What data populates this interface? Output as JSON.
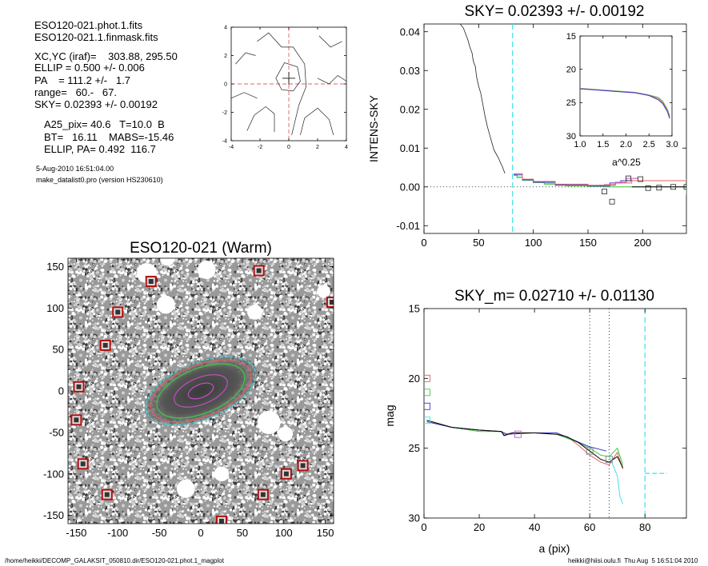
{
  "info": {
    "file1": "ESO120-021.phot.1.fits",
    "file2": "ESO120-021.1.finmask.fits",
    "xcyc": "XC,YC (iraf)=    303.88, 295.50",
    "ellip": "ELLIP = 0.500 +/- 0.006",
    "pa": "PA    = 111.2 +/-   1.7",
    "range": "range=   60.-   67.",
    "sky": "SKY= 0.02393 +/- 0.00192",
    "a25": "A25_pix= 40.6   T=10.0  B",
    "bt": "BT=   16.11    MABS=-15.46",
    "ellip_pa": "ELLIP, PA= 0.492  116.7",
    "date": "5-Aug-2010 16:51:04.00",
    "prog": "make_datalist0.pro (version HS230610)"
  },
  "footer": {
    "left": "/home/heikki/DECOMP_GALAKSIT_050810.dir/ESO120-021.phot.1_magplot",
    "right": "heikki@hiisi.oulu.fi  Thu Aug  5 16:51:04 2010"
  },
  "colors": {
    "red": "#e06060",
    "green": "#3ccc3c",
    "blue": "#3a3ad0",
    "cyan": "#40e0e8",
    "magenta": "#c050c0",
    "grey": "#808080",
    "mask_red": "#b01010"
  },
  "chart_data": [
    {
      "id": "contour",
      "type": "contour",
      "title": "",
      "xlim": [
        -4,
        4
      ],
      "ylim": [
        -4,
        4
      ],
      "xticks": [
        -4,
        -2,
        0,
        2,
        4
      ],
      "yticks": [
        -4,
        -2,
        0,
        2,
        4
      ],
      "tick_labels_x": [
        "-4",
        "-2",
        "0",
        "2",
        "4"
      ],
      "tick_labels_y": [
        "-4",
        "-2",
        "0",
        "2",
        "4"
      ],
      "center": [
        0.0,
        0.4
      ],
      "contours": [
        [
          [
            -0.9,
            0.4
          ],
          [
            -0.3,
            1.5
          ],
          [
            0.6,
            1.2
          ],
          [
            0.8,
            0.2
          ],
          [
            0.3,
            -0.5
          ],
          [
            -0.5,
            -0.4
          ],
          [
            -0.9,
            0.4
          ]
        ],
        [
          [
            -2.2,
            3.0
          ],
          [
            -1.4,
            3.6
          ],
          [
            -0.5,
            2.6
          ],
          [
            0.3,
            2.6
          ],
          [
            1.1,
            1.4
          ],
          [
            1.2,
            -0.2
          ],
          [
            0.7,
            -1.5
          ],
          [
            0.2,
            -3.6
          ]
        ],
        [
          [
            -2.9,
            -3.3
          ],
          [
            -2.4,
            -2.2
          ],
          [
            -1.6,
            -1.6
          ],
          [
            -1.0,
            -2.1
          ],
          [
            -1.0,
            -3.4
          ]
        ],
        [
          [
            0.8,
            -3.6
          ],
          [
            1.1,
            -2.4
          ],
          [
            2.0,
            -1.7
          ],
          [
            2.8,
            -2.5
          ],
          [
            3.1,
            -3.6
          ]
        ],
        [
          [
            -3.7,
            1.4
          ],
          [
            -3.0,
            2.2
          ],
          [
            -2.3,
            2.0
          ]
        ],
        [
          [
            -4.0,
            -1.0
          ],
          [
            -3.1,
            -0.6
          ],
          [
            -2.2,
            -1.0
          ]
        ],
        [
          [
            2.0,
            0.4
          ],
          [
            2.8,
            0.0
          ],
          [
            3.4,
            0.6
          ],
          [
            4.0,
            0.2
          ]
        ],
        [
          [
            2.1,
            3.4
          ],
          [
            2.9,
            2.6
          ],
          [
            3.7,
            3.0
          ]
        ]
      ]
    },
    {
      "id": "sky",
      "type": "line",
      "title": "SKY= 0.02393 +/- 0.00192",
      "xlabel": "",
      "ylabel": "INTENS-SKY",
      "xlim": [
        0,
        240
      ],
      "ylim": [
        -0.012,
        0.042
      ],
      "xticks": [
        0,
        50,
        100,
        150,
        200
      ],
      "yticks": [
        -0.01,
        0.0,
        0.01,
        0.02,
        0.03,
        0.04
      ],
      "tick_labels_x": [
        "0",
        "50",
        "100",
        "150",
        "200"
      ],
      "tick_labels_y": [
        "-0.01",
        "0.00",
        "0.01",
        "0.02",
        "0.03",
        "0.04"
      ],
      "profile": [
        [
          33,
          0.042
        ],
        [
          36,
          0.041
        ],
        [
          38,
          0.0395
        ],
        [
          40,
          0.038
        ],
        [
          42,
          0.036
        ],
        [
          44,
          0.0345
        ],
        [
          45,
          0.0325
        ],
        [
          47,
          0.031
        ],
        [
          48,
          0.0285
        ],
        [
          50,
          0.026
        ],
        [
          52,
          0.024
        ],
        [
          54,
          0.021
        ],
        [
          56,
          0.018
        ],
        [
          58,
          0.0155
        ],
        [
          60,
          0.0135
        ],
        [
          62,
          0.0115
        ],
        [
          64,
          0.0095
        ],
        [
          66,
          0.0085
        ],
        [
          68,
          0.0075
        ],
        [
          70,
          0.0062
        ],
        [
          72,
          0.005
        ],
        [
          73,
          0.0042
        ],
        [
          74,
          0.0035
        ]
      ],
      "series": [
        {
          "color": "cyan",
          "points": [
            [
              82,
              0.0032
            ],
            [
              85,
              0.0026
            ],
            [
              90,
              0.0019
            ],
            [
              100,
              0.0013
            ],
            [
              110,
              0.0009
            ],
            [
              120,
              0.0006
            ],
            [
              130,
              0.0004
            ],
            [
              150,
              0.0003
            ],
            [
              165,
              0.0002
            ]
          ]
        },
        {
          "color": "green",
          "points": [
            [
              82,
              0.003
            ],
            [
              85,
              0.0024
            ],
            [
              90,
              0.0017
            ],
            [
              100,
              0.0011
            ],
            [
              110,
              0.0007
            ],
            [
              120,
              0.0004
            ],
            [
              130,
              0.0002
            ],
            [
              150,
              0.0001
            ],
            [
              165,
              0.0
            ],
            [
              240,
              -0.002
            ]
          ]
        },
        {
          "color": "blue",
          "points": [
            [
              82,
              0.0031
            ],
            [
              90,
              0.0018
            ],
            [
              100,
              0.0012
            ],
            [
              120,
              0.0005
            ],
            [
              150,
              0.0002
            ],
            [
              170,
              0.001
            ],
            [
              180,
              0.0016
            ],
            [
              190,
              0.0019
            ]
          ]
        },
        {
          "color": "red",
          "points": [
            [
              82,
              0.0034
            ],
            [
              90,
              0.002
            ],
            [
              100,
              0.0014
            ],
            [
              120,
              0.0007
            ],
            [
              150,
              0.0004
            ],
            [
              165,
              0.0006
            ],
            [
              175,
              0.001
            ],
            [
              190,
              0.0016
            ],
            [
              240,
              0.002
            ]
          ]
        },
        {
          "color": "magenta",
          "points": [
            [
              160,
              0.0004
            ],
            [
              175,
              0.0012
            ],
            [
              185,
              0.0022
            ],
            [
              195,
              0.0024
            ]
          ]
        },
        {
          "color": "black",
          "points": [
            [
              190,
              0.0
            ],
            [
              240,
              0.0
            ]
          ]
        }
      ],
      "squares": [
        [
          165,
          -0.0012
        ],
        [
          172,
          -0.0038
        ],
        [
          187,
          0.0022
        ],
        [
          198,
          0.002
        ],
        [
          205,
          -0.0003
        ],
        [
          215,
          -0.0002
        ],
        [
          228,
          0.0
        ],
        [
          240,
          0.0
        ]
      ],
      "vline": 81,
      "inset": {
        "xlim": [
          1.0,
          3.0
        ],
        "ylim": [
          15,
          30
        ],
        "xticks": [
          1.0,
          1.5,
          2.0,
          2.5,
          3.0
        ],
        "yticks": [
          15,
          20,
          25,
          30
        ],
        "tick_labels_x": [
          "1.0",
          "1.5",
          "2.0",
          "2.5",
          "3.0"
        ],
        "tick_labels_y": [
          "15",
          "20",
          "25",
          "30"
        ],
        "xlabel": "a^0.25",
        "curve": [
          [
            1.0,
            22.9
          ],
          [
            1.4,
            23.1
          ],
          [
            1.8,
            23.3
          ],
          [
            2.2,
            23.5
          ],
          [
            2.5,
            23.9
          ],
          [
            2.7,
            24.4
          ],
          [
            2.8,
            25.0
          ],
          [
            2.9,
            26.2
          ],
          [
            2.95,
            27.2
          ]
        ]
      }
    },
    {
      "id": "image",
      "type": "image",
      "title": "ESO120-021 (Warm)",
      "xlim": [
        -160,
        160
      ],
      "ylim": [
        -160,
        160
      ],
      "xticks": [
        -150,
        -100,
        -50,
        0,
        50,
        100,
        150
      ],
      "yticks": [
        -150,
        -100,
        -50,
        0,
        50,
        100,
        150
      ],
      "tick_labels_x": [
        "-150",
        "-100",
        "-50",
        "0",
        "50",
        "100",
        "150"
      ],
      "tick_labels_y": [
        "-150",
        "-100",
        "-50",
        "0",
        "50",
        "100",
        "150"
      ],
      "ellipses": [
        {
          "a": 16,
          "b": 8,
          "color": "magenta"
        },
        {
          "a": 34,
          "b": 16,
          "color": "magenta"
        },
        {
          "a": 56,
          "b": 27,
          "color": "green"
        },
        {
          "a": 64,
          "b": 31,
          "color": "red"
        },
        {
          "a": 70,
          "b": 34,
          "color": "cyan"
        }
      ],
      "ellipse_pa_deg": 22,
      "masks": [
        [
          -147,
          5
        ],
        [
          -150,
          -35
        ],
        [
          -142,
          -88
        ],
        [
          -113,
          -125
        ],
        [
          -115,
          55
        ],
        [
          -100,
          95
        ],
        [
          -60,
          132
        ],
        [
          25,
          -157
        ],
        [
          70,
          145
        ],
        [
          75,
          -125
        ],
        [
          103,
          -100
        ],
        [
          123,
          -90
        ],
        [
          158,
          107
        ]
      ],
      "blobs": [
        [
          -40,
          160,
          9
        ],
        [
          -65,
          142,
          12
        ],
        [
          7,
          146,
          11
        ],
        [
          -42,
          104,
          11
        ],
        [
          15,
          27,
          9
        ],
        [
          -20,
          8,
          7
        ],
        [
          -40,
          5,
          5
        ],
        [
          -15,
          -15,
          6
        ],
        [
          -18,
          -118,
          11
        ],
        [
          25,
          -100,
          9
        ],
        [
          65,
          95,
          9
        ],
        [
          82,
          -38,
          14
        ],
        [
          102,
          -52,
          9
        ],
        [
          148,
          120,
          8
        ]
      ]
    },
    {
      "id": "mag",
      "type": "line",
      "title": "SKY_m=  0.02710 +/- 0.01130",
      "xlabel": "a (pix)",
      "ylabel": "mag",
      "xlim": [
        0,
        95
      ],
      "ylim": [
        30,
        15
      ],
      "xticks": [
        0,
        20,
        40,
        60,
        80
      ],
      "yticks": [
        15,
        20,
        25,
        30
      ],
      "tick_labels_x": [
        "0",
        "20",
        "40",
        "60",
        "80"
      ],
      "tick_labels_y": [
        "15",
        "20",
        "25",
        "30"
      ],
      "vlines_dotted": [
        60,
        67
      ],
      "vline_dashed": 80,
      "series": [
        {
          "color": "red",
          "points": [
            [
              1,
              23.0
            ],
            [
              10,
              23.5
            ],
            [
              20,
              23.7
            ],
            [
              28,
              23.8
            ],
            [
              29,
              24.0
            ],
            [
              32,
              23.9
            ],
            [
              40,
              23.9
            ],
            [
              48,
              23.9
            ],
            [
              52,
              24.2
            ],
            [
              56,
              24.8
            ],
            [
              60,
              25.5
            ],
            [
              64,
              26.0
            ],
            [
              67,
              26.2
            ],
            [
              70,
              25.3
            ],
            [
              72,
              26.5
            ]
          ]
        },
        {
          "color": "green",
          "points": [
            [
              1,
              23.1
            ],
            [
              10,
              23.5
            ],
            [
              20,
              23.8
            ],
            [
              28,
              23.8
            ],
            [
              29,
              24.1
            ],
            [
              32,
              23.9
            ],
            [
              40,
              23.9
            ],
            [
              48,
              24.0
            ],
            [
              52,
              24.3
            ],
            [
              56,
              24.6
            ],
            [
              60,
              25.0
            ],
            [
              64,
              25.5
            ],
            [
              67,
              25.6
            ],
            [
              70,
              25.0
            ],
            [
              72,
              26.2
            ]
          ]
        },
        {
          "color": "blue",
          "points": [
            [
              1,
              23.1
            ],
            [
              10,
              23.5
            ],
            [
              20,
              23.7
            ],
            [
              28,
              23.8
            ],
            [
              30,
              24.0
            ],
            [
              40,
              23.9
            ],
            [
              48,
              23.9
            ],
            [
              54,
              24.4
            ],
            [
              60,
              24.9
            ],
            [
              66,
              25.2
            ]
          ]
        },
        {
          "color": "black",
          "points": [
            [
              1,
              23.0
            ],
            [
              10,
              23.5
            ],
            [
              20,
              23.7
            ],
            [
              28,
              23.8
            ],
            [
              29,
              24.1
            ],
            [
              32,
              23.9
            ],
            [
              40,
              23.9
            ],
            [
              48,
              24.0
            ],
            [
              52,
              24.2
            ],
            [
              56,
              24.6
            ],
            [
              60,
              25.2
            ],
            [
              64,
              25.8
            ],
            [
              67,
              26.0
            ],
            [
              70,
              25.6
            ],
            [
              72,
              26.4
            ]
          ]
        },
        {
          "color": "cyan",
          "points": [
            [
              67,
              25.5
            ],
            [
              70,
              27.0
            ],
            [
              71,
              28.5
            ],
            [
              72,
              29.0
            ]
          ]
        }
      ],
      "cyan_dash": [
        [
          80,
          26.8
        ],
        [
          88,
          26.8
        ]
      ],
      "squares": [
        [
          1,
          20.0,
          "red"
        ],
        [
          1,
          21.0,
          "green"
        ],
        [
          1,
          22.0,
          "blue"
        ],
        [
          1,
          23.0,
          "cyan"
        ],
        [
          34,
          24.0,
          "magenta"
        ],
        [
          60,
          25.2,
          "grey"
        ],
        [
          67,
          25.8,
          "grey"
        ]
      ]
    }
  ]
}
